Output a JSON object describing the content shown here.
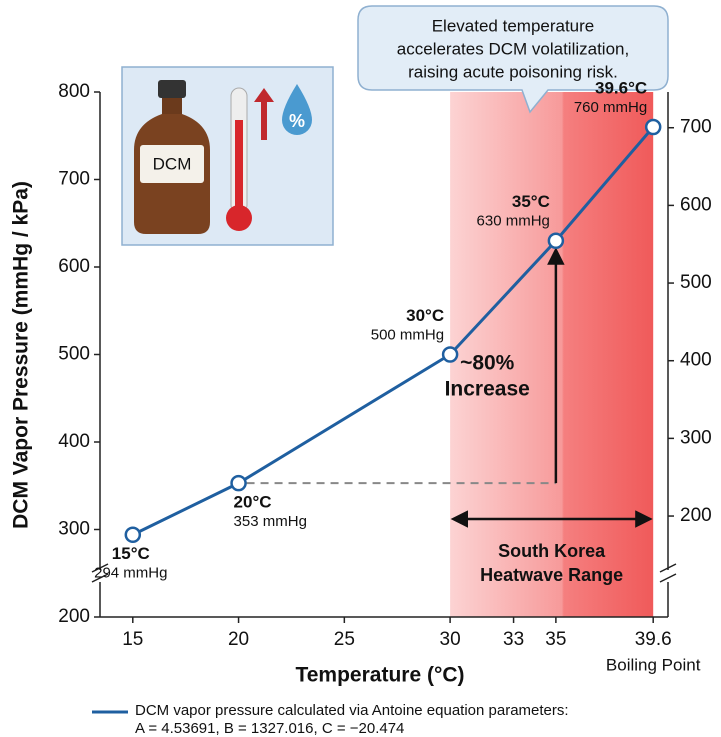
{
  "chart_data": {
    "type": "line",
    "callout": [
      "Elevated temperature",
      "accelerates DCM volatilization,",
      "raising acute poisoning risk."
    ],
    "xlabel": "Temperature (°C)",
    "ylabel": "DCM Vapor Pressure (mmHg / kPa)",
    "x": [
      15,
      20,
      30,
      35,
      39.6
    ],
    "x_labels": [
      "15°C",
      "20°C",
      "30°C",
      "35°C",
      "39.6°C"
    ],
    "series": [
      {
        "name": "DCM vapor pressure calculated via Antoine equation parameters:",
        "color": "#1f5fa0",
        "values": [
          294,
          353,
          500,
          630,
          760
        ],
        "value_labels": [
          "294 mmHg",
          "353 mmHg",
          "500 mmHg",
          "630 mmHg",
          "760 mmHg"
        ]
      }
    ],
    "legend_note": "A = 4.53691, B = 1327.016, C = −20.474",
    "xlim": [
      13.45,
      40.3
    ],
    "xticks": [
      15,
      20,
      25,
      30,
      33,
      35,
      39.6
    ],
    "xtick_note": "Boiling Point",
    "ylim": [
      200,
      800
    ],
    "yticks": [
      200,
      300,
      400,
      500,
      600,
      700,
      800
    ],
    "y2lim": [
      70,
      746
    ],
    "y2ticks": [
      200,
      300,
      400,
      500,
      600,
      700
    ],
    "axis_break": true,
    "shaded_range": {
      "x": [
        30,
        39.6
      ],
      "label": [
        "South Korea",
        "Heatwave Range"
      ]
    },
    "increase_annotation": [
      "~80%",
      "Increase"
    ],
    "icon_labels": {
      "bottle": "DCM",
      "drop": "%"
    }
  }
}
